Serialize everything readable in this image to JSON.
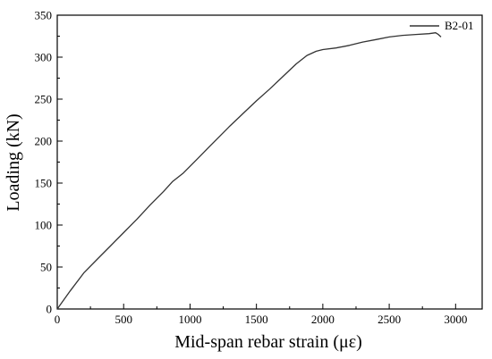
{
  "chart_data": {
    "type": "line",
    "xlabel": "Mid-span rebar strain (με)",
    "ylabel": "Loading (kN)",
    "xlim": [
      0,
      3200
    ],
    "ylim": [
      0,
      350
    ],
    "x_ticks": [
      0,
      500,
      1000,
      1500,
      2000,
      2500,
      3000
    ],
    "y_ticks": [
      0,
      50,
      100,
      150,
      200,
      250,
      300,
      350
    ],
    "legend_position": "top-right",
    "grid": false,
    "series": [
      {
        "name": "B2-01",
        "color": "#333333",
        "x": [
          0,
          100,
          200,
          300,
          400,
          500,
          600,
          700,
          800,
          870,
          950,
          1050,
          1150,
          1300,
          1400,
          1500,
          1600,
          1700,
          1800,
          1880,
          1950,
          2000,
          2100,
          2200,
          2300,
          2400,
          2500,
          2600,
          2700,
          2800,
          2850,
          2870,
          2890
        ],
        "y": [
          0,
          22,
          43,
          59,
          75,
          91,
          107,
          124,
          140,
          152,
          162,
          178,
          194,
          218,
          233,
          248,
          262,
          277,
          292,
          302,
          307,
          309,
          311,
          314,
          318,
          321,
          324,
          326,
          327,
          328,
          329,
          327,
          324
        ]
      }
    ]
  }
}
